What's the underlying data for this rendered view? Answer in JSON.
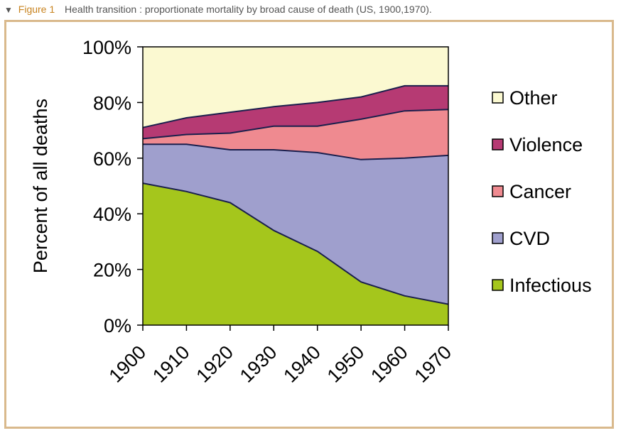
{
  "caption": {
    "marker": "▼",
    "figure_label": "Figure 1",
    "description": "Health transition : proportionate mortality by broad cause of death (US, 1900,1970)."
  },
  "chart_data": {
    "type": "area",
    "stacked": true,
    "percent": true,
    "title": "Health transition : proportionate mortality by broad cause of death (US, 1900,1970).",
    "xlabel": "",
    "ylabel": "Percent of all deaths",
    "x": [
      1900,
      1910,
      1920,
      1930,
      1940,
      1950,
      1960,
      1970
    ],
    "x_tick_labels": [
      "1900",
      "1910",
      "1920",
      "1930",
      "1940",
      "1950",
      "1960",
      "1970"
    ],
    "ylim": [
      0,
      100
    ],
    "y_ticks": [
      0,
      20,
      40,
      60,
      80,
      100
    ],
    "y_tick_labels": [
      "0%",
      "20%",
      "40%",
      "60%",
      "80%",
      "100%"
    ],
    "series": [
      {
        "name": "Infectious",
        "color": "#a5c61c",
        "values": [
          51,
          48,
          44,
          34,
          26.5,
          15.5,
          10.5,
          7.5
        ]
      },
      {
        "name": "CVD",
        "color": "#9f9fcd",
        "values": [
          14,
          17,
          19,
          29,
          35.5,
          44,
          49.5,
          53.5
        ]
      },
      {
        "name": "Cancer",
        "color": "#ef8a90",
        "values": [
          2,
          3.5,
          6,
          8.5,
          9.5,
          14.5,
          17,
          16.5
        ]
      },
      {
        "name": "Violence",
        "color": "#b63a73",
        "values": [
          4,
          6,
          7.5,
          7,
          8.5,
          8,
          9,
          8.5
        ]
      },
      {
        "name": "Other",
        "color": "#fbf9d1",
        "values": [
          29,
          25.5,
          23.5,
          21.5,
          20,
          18,
          14,
          14
        ]
      }
    ],
    "legend": {
      "position": "right",
      "order": [
        "Other",
        "Violence",
        "Cancer",
        "CVD",
        "Infectious"
      ]
    }
  }
}
